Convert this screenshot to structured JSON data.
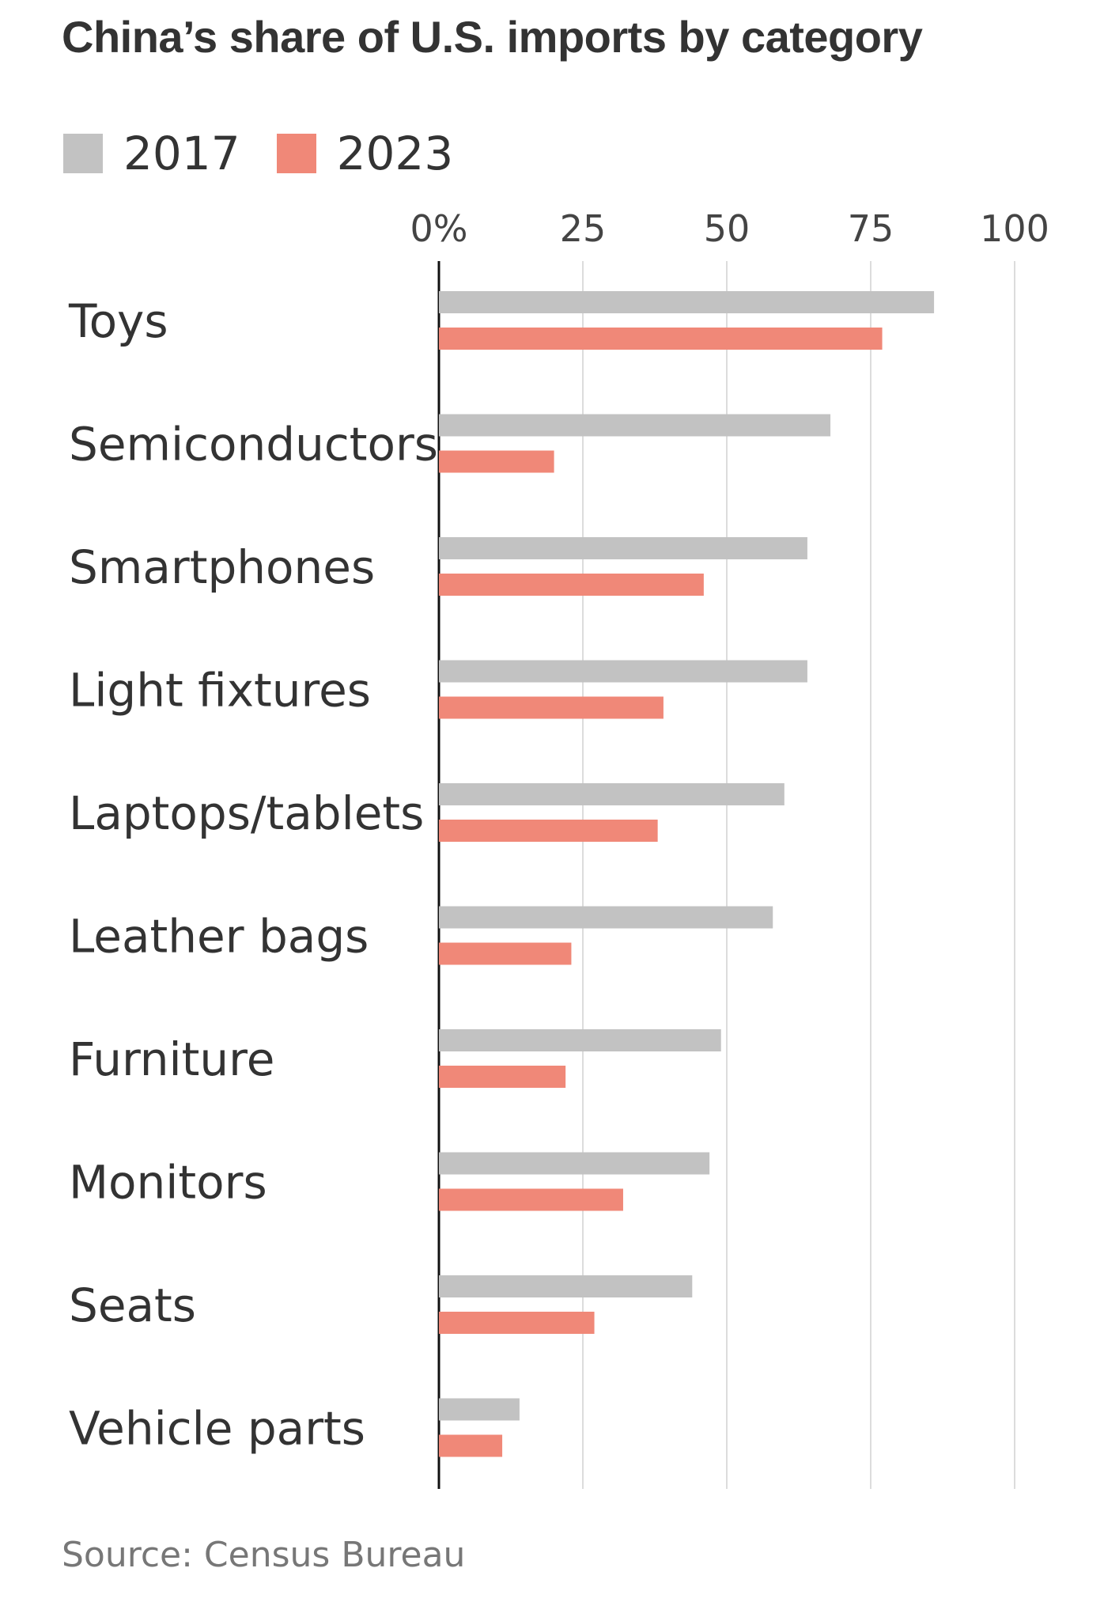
{
  "chart_data": {
    "type": "bar",
    "orientation": "horizontal",
    "title": "China’s share of U.S. imports by category",
    "categories": [
      "Toys",
      "Semiconductors",
      "Smartphones",
      "Light fixtures",
      "Laptops/tablets",
      "Leather bags",
      "Furniture",
      "Monitors",
      "Seats",
      "Vehicle parts"
    ],
    "series": [
      {
        "name": "2017",
        "color": "#c2c2c2",
        "values": [
          86,
          68,
          64,
          64,
          60,
          58,
          49,
          47,
          44,
          14
        ]
      },
      {
        "name": "2023",
        "color": "#f08878",
        "values": [
          77,
          20,
          46,
          39,
          38,
          23,
          22,
          32,
          27,
          11
        ]
      }
    ],
    "xlim": [
      0,
      100
    ],
    "xticks": [
      0,
      25,
      50,
      75,
      100
    ],
    "xtick_labels": [
      "0%",
      "25",
      "50",
      "75",
      "100"
    ],
    "grid": true,
    "legend_position": "top-left",
    "source": "Source: Census Bureau"
  }
}
